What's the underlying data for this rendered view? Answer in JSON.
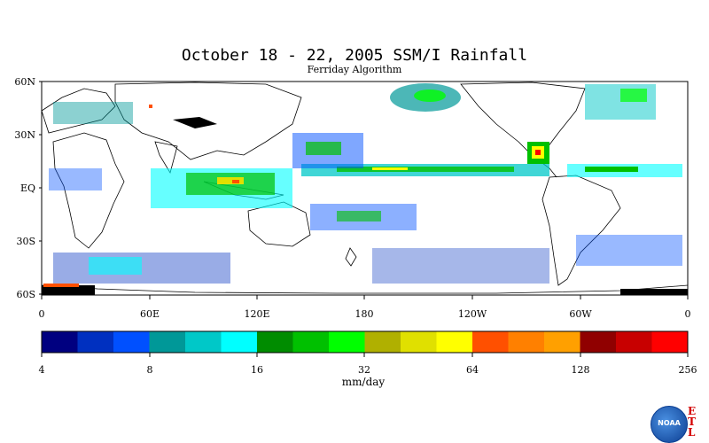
{
  "header": {
    "title": "October 18 - 22, 2005 SSM/I Rainfall",
    "subtitle": "Ferriday Algorithm"
  },
  "map": {
    "lat_labels": [
      "60N",
      "30N",
      "EQ",
      "30S",
      "60S"
    ],
    "lon_labels": [
      "0",
      "60E",
      "120E",
      "180",
      "120W",
      "60W",
      "0"
    ]
  },
  "legend": {
    "unit": "mm/day",
    "ticks": [
      "4",
      "8",
      "16",
      "32",
      "64",
      "128",
      "256"
    ],
    "colors": [
      "#000080",
      "#0030c0",
      "#0050ff",
      "#009898",
      "#00c8c8",
      "#00ffff",
      "#008c00",
      "#00c000",
      "#00ff00",
      "#b0b000",
      "#e0e000",
      "#ffff00",
      "#ff5000",
      "#ff8000",
      "#ffa000",
      "#900000",
      "#c80000",
      "#ff0000"
    ]
  },
  "logo": {
    "name": "NOAA",
    "etl": [
      "E",
      "T",
      "L"
    ]
  }
}
